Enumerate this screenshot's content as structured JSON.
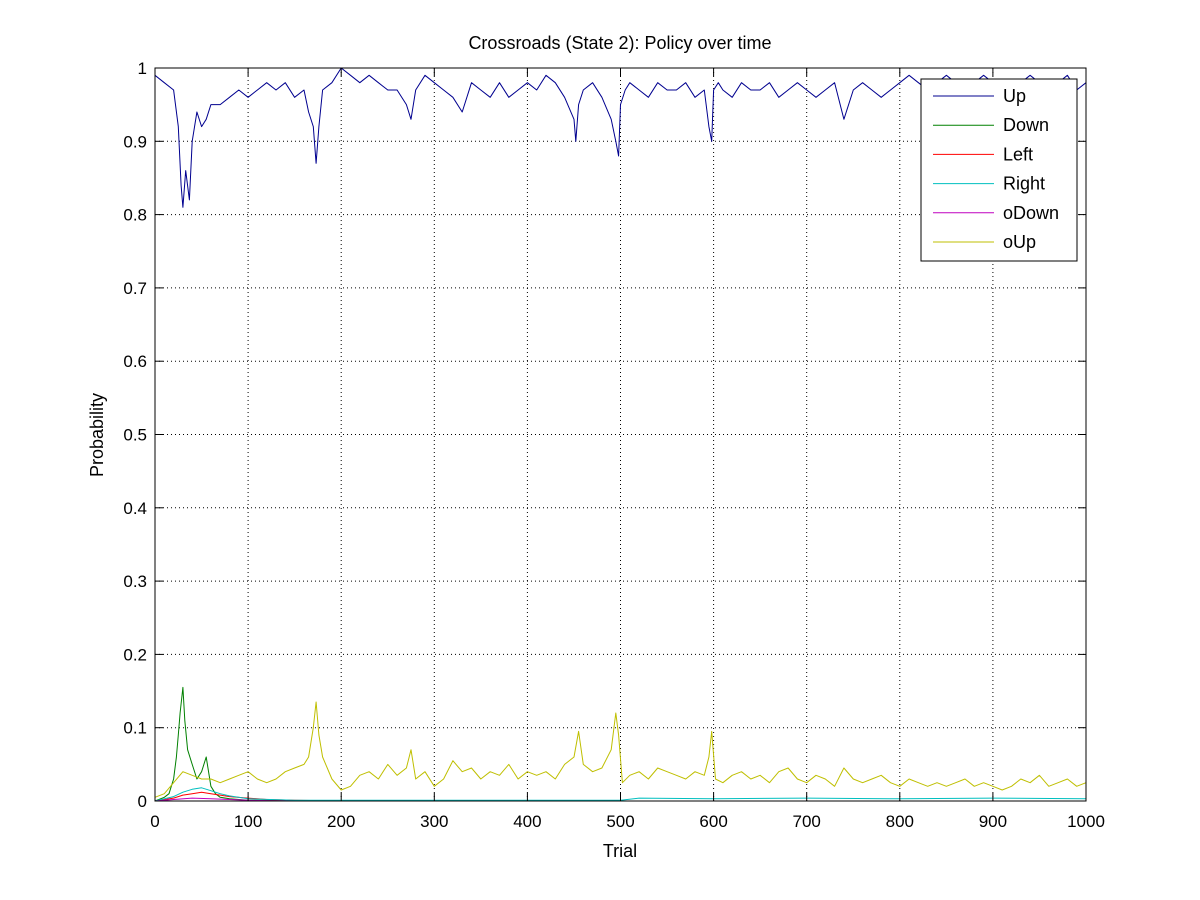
{
  "chart_data": {
    "type": "line",
    "title": "Crossroads (State 2): Policy over time",
    "xlabel": "Trial",
    "ylabel": "Probability",
    "xlim": [
      0,
      1000
    ],
    "ylim": [
      0,
      1
    ],
    "grid": true,
    "legend_position": "top-right",
    "x_ticks": [
      "0",
      "100",
      "200",
      "300",
      "400",
      "500",
      "600",
      "700",
      "800",
      "900",
      "1000"
    ],
    "y_ticks": [
      "0",
      "0.1",
      "0.2",
      "0.3",
      "0.4",
      "0.5",
      "0.6",
      "0.7",
      "0.8",
      "0.9",
      "1"
    ],
    "series": [
      {
        "name": "Up",
        "color": "#00008f",
        "x": [
          0,
          10,
          20,
          25,
          28,
          30,
          33,
          37,
          40,
          45,
          50,
          55,
          60,
          70,
          80,
          90,
          100,
          110,
          120,
          130,
          140,
          150,
          160,
          165,
          170,
          173,
          176,
          180,
          190,
          200,
          210,
          220,
          230,
          240,
          250,
          260,
          270,
          275,
          280,
          290,
          300,
          310,
          320,
          330,
          340,
          350,
          360,
          370,
          380,
          390,
          400,
          410,
          420,
          430,
          440,
          450,
          452,
          455,
          460,
          470,
          480,
          490,
          495,
          498,
          500,
          505,
          510,
          520,
          530,
          540,
          550,
          560,
          570,
          580,
          590,
          595,
          598,
          600,
          605,
          610,
          620,
          630,
          640,
          650,
          660,
          670,
          680,
          690,
          700,
          710,
          720,
          730,
          740,
          750,
          760,
          770,
          780,
          790,
          800,
          810,
          820,
          830,
          840,
          850,
          860,
          870,
          880,
          890,
          900,
          910,
          920,
          930,
          940,
          950,
          960,
          970,
          980,
          990,
          1000
        ],
        "values": [
          0.99,
          0.98,
          0.97,
          0.92,
          0.84,
          0.81,
          0.86,
          0.82,
          0.9,
          0.94,
          0.92,
          0.93,
          0.95,
          0.95,
          0.96,
          0.97,
          0.96,
          0.97,
          0.98,
          0.97,
          0.98,
          0.96,
          0.97,
          0.94,
          0.92,
          0.87,
          0.92,
          0.97,
          0.98,
          1.0,
          0.99,
          0.98,
          0.99,
          0.98,
          0.97,
          0.97,
          0.95,
          0.93,
          0.97,
          0.99,
          0.98,
          0.97,
          0.96,
          0.94,
          0.98,
          0.97,
          0.96,
          0.98,
          0.96,
          0.97,
          0.98,
          0.97,
          0.99,
          0.98,
          0.96,
          0.93,
          0.9,
          0.95,
          0.97,
          0.98,
          0.96,
          0.93,
          0.9,
          0.88,
          0.95,
          0.97,
          0.98,
          0.97,
          0.96,
          0.98,
          0.97,
          0.97,
          0.98,
          0.96,
          0.97,
          0.92,
          0.9,
          0.97,
          0.98,
          0.97,
          0.96,
          0.98,
          0.97,
          0.97,
          0.98,
          0.96,
          0.97,
          0.98,
          0.97,
          0.96,
          0.97,
          0.98,
          0.93,
          0.97,
          0.98,
          0.97,
          0.96,
          0.97,
          0.98,
          0.99,
          0.98,
          0.97,
          0.98,
          0.99,
          0.98,
          0.97,
          0.98,
          0.99,
          0.98,
          0.98,
          0.97,
          0.98,
          0.99,
          0.98,
          0.97,
          0.98,
          0.99,
          0.97,
          0.98
        ]
      },
      {
        "name": "Down",
        "color": "#008000",
        "x": [
          0,
          10,
          15,
          20,
          23,
          25,
          27,
          30,
          32,
          35,
          40,
          45,
          50,
          55,
          60,
          65,
          70,
          80,
          90,
          100,
          120,
          150,
          200,
          300,
          400,
          500,
          600,
          700,
          800,
          900,
          1000
        ],
        "values": [
          0.0,
          0.005,
          0.01,
          0.03,
          0.06,
          0.09,
          0.12,
          0.155,
          0.11,
          0.07,
          0.05,
          0.03,
          0.04,
          0.06,
          0.02,
          0.01,
          0.005,
          0.003,
          0.002,
          0.001,
          0.001,
          0.0,
          0.0,
          0.0,
          0.0,
          0.0,
          0.0,
          0.0,
          0.0,
          0.0,
          0.0
        ]
      },
      {
        "name": "Left",
        "color": "#ff0000",
        "x": [
          0,
          20,
          30,
          40,
          50,
          60,
          70,
          80,
          100,
          120,
          150,
          200,
          300,
          500,
          700,
          1000
        ],
        "values": [
          0.0,
          0.004,
          0.008,
          0.01,
          0.012,
          0.01,
          0.008,
          0.006,
          0.004,
          0.002,
          0.001,
          0.0,
          0.0,
          0.0,
          0.0,
          0.0
        ]
      },
      {
        "name": "Right",
        "color": "#00bfbf",
        "x": [
          0,
          20,
          30,
          40,
          50,
          60,
          70,
          80,
          100,
          150,
          200,
          300,
          400,
          500,
          520,
          600,
          700,
          800,
          900,
          1000
        ],
        "values": [
          0.0,
          0.006,
          0.012,
          0.016,
          0.018,
          0.014,
          0.01,
          0.007,
          0.003,
          0.001,
          0.001,
          0.001,
          0.001,
          0.001,
          0.004,
          0.003,
          0.004,
          0.003,
          0.004,
          0.003
        ]
      },
      {
        "name": "oDown",
        "color": "#bf00bf",
        "x": [
          0,
          20,
          40,
          60,
          80,
          100,
          150,
          200,
          500,
          1000
        ],
        "values": [
          0.0,
          0.002,
          0.004,
          0.003,
          0.002,
          0.001,
          0.0,
          0.0,
          0.0,
          0.0
        ]
      },
      {
        "name": "oUp",
        "color": "#bfbf00",
        "x": [
          0,
          10,
          20,
          30,
          40,
          50,
          60,
          70,
          80,
          90,
          100,
          110,
          120,
          130,
          140,
          150,
          160,
          165,
          170,
          173,
          176,
          180,
          190,
          200,
          210,
          220,
          230,
          240,
          250,
          260,
          270,
          275,
          280,
          290,
          300,
          310,
          320,
          330,
          340,
          350,
          360,
          370,
          380,
          390,
          400,
          410,
          420,
          430,
          440,
          450,
          455,
          460,
          470,
          480,
          490,
          495,
          498,
          502,
          510,
          520,
          530,
          540,
          550,
          560,
          570,
          580,
          590,
          595,
          598,
          602,
          610,
          620,
          630,
          640,
          650,
          660,
          670,
          680,
          690,
          700,
          710,
          720,
          730,
          740,
          750,
          760,
          770,
          780,
          790,
          800,
          810,
          820,
          830,
          840,
          850,
          860,
          870,
          880,
          890,
          900,
          910,
          920,
          930,
          940,
          950,
          960,
          970,
          980,
          990,
          1000
        ],
        "values": [
          0.005,
          0.01,
          0.025,
          0.04,
          0.035,
          0.03,
          0.03,
          0.025,
          0.03,
          0.035,
          0.04,
          0.03,
          0.025,
          0.03,
          0.04,
          0.045,
          0.05,
          0.06,
          0.1,
          0.135,
          0.09,
          0.06,
          0.03,
          0.015,
          0.02,
          0.035,
          0.04,
          0.03,
          0.05,
          0.035,
          0.045,
          0.07,
          0.03,
          0.04,
          0.02,
          0.03,
          0.055,
          0.04,
          0.045,
          0.03,
          0.04,
          0.035,
          0.05,
          0.03,
          0.04,
          0.035,
          0.04,
          0.03,
          0.05,
          0.06,
          0.095,
          0.05,
          0.04,
          0.045,
          0.07,
          0.12,
          0.09,
          0.025,
          0.035,
          0.04,
          0.03,
          0.045,
          0.04,
          0.035,
          0.03,
          0.04,
          0.035,
          0.06,
          0.095,
          0.03,
          0.025,
          0.035,
          0.04,
          0.03,
          0.035,
          0.025,
          0.04,
          0.045,
          0.03,
          0.025,
          0.035,
          0.03,
          0.02,
          0.045,
          0.03,
          0.025,
          0.03,
          0.035,
          0.025,
          0.02,
          0.03,
          0.025,
          0.02,
          0.025,
          0.02,
          0.025,
          0.03,
          0.02,
          0.025,
          0.02,
          0.015,
          0.02,
          0.03,
          0.025,
          0.035,
          0.02,
          0.025,
          0.03,
          0.02,
          0.025
        ]
      }
    ]
  }
}
